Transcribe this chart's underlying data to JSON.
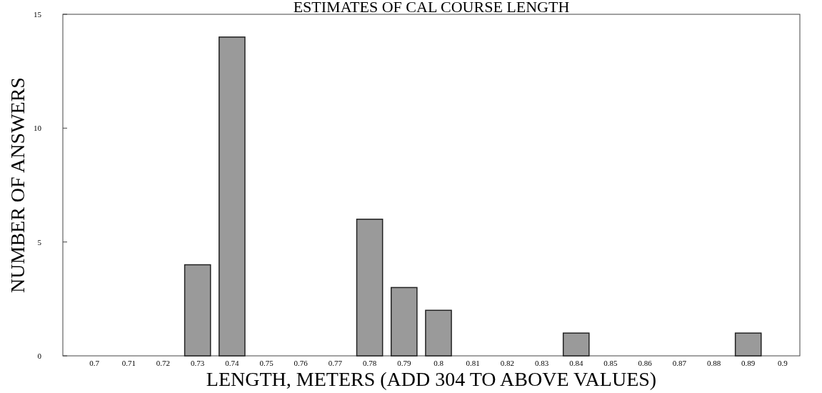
{
  "chart_data": {
    "type": "bar",
    "title": "ESTIMATES OF CAL COURSE LENGTH",
    "xlabel": "LENGTH, METERS (ADD 304 TO ABOVE VALUES)",
    "ylabel": "NUMBER OF ANSWERS",
    "categories": [
      "0.7",
      "0.71",
      "0.72",
      "0.73",
      "0.74",
      "0.75",
      "0.76",
      "0.77",
      "0.78",
      "0.79",
      "0.8",
      "0.81",
      "0.82",
      "0.83",
      "0.84",
      "0.85",
      "0.86",
      "0.87",
      "0.88",
      "0.89",
      "0.9"
    ],
    "values": [
      0,
      0,
      0,
      4,
      14,
      0,
      0,
      0,
      6,
      3,
      2,
      0,
      0,
      0,
      1,
      0,
      0,
      0,
      0,
      1,
      0
    ],
    "color": "#9a9a9a",
    "ylim": [
      0,
      15
    ],
    "yticks": [
      0,
      5,
      10,
      15
    ],
    "grid": false
  }
}
